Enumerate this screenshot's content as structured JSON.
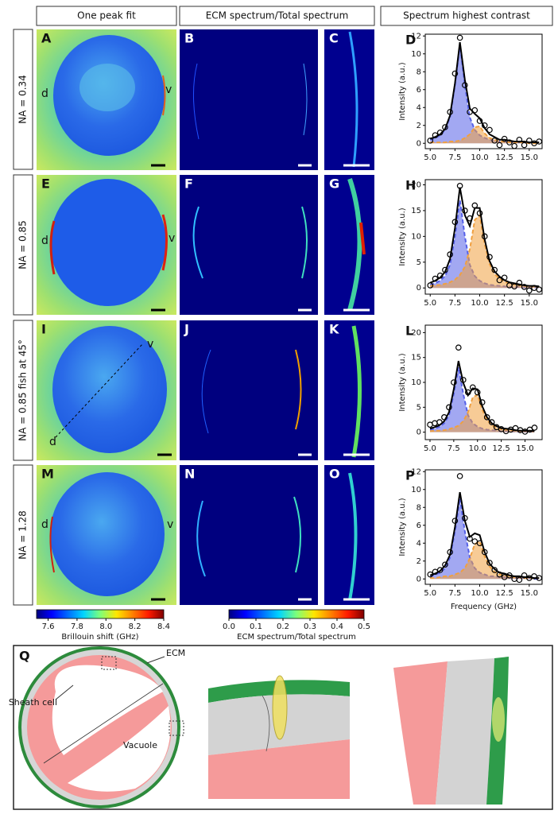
{
  "column_headers": [
    "One peak fit",
    "ECM spectrum/Total spectrum",
    "Spectrum highest contrast"
  ],
  "rows": [
    {
      "label": "NA = 0.34",
      "panels": [
        "A",
        "B",
        "C"
      ],
      "marks": [
        "d",
        "v"
      ]
    },
    {
      "label": "NA = 0.85",
      "panels": [
        "E",
        "F",
        "G"
      ],
      "marks": [
        "d",
        "v"
      ]
    },
    {
      "label": "NA = 0.85  fish at 45°",
      "panels": [
        "I",
        "J",
        "K"
      ],
      "marks": [
        "d",
        "v"
      ]
    },
    {
      "label": "NA = 1.28",
      "panels": [
        "M",
        "N",
        "O"
      ],
      "marks": [
        "d",
        "v"
      ]
    }
  ],
  "colorbars": [
    {
      "label": "Brillouin shift (GHz)",
      "lim": [
        7.52,
        8.4
      ],
      "ticks": [
        7.6,
        7.8,
        {
          "value": 8,
          "label": "8.0"
        },
        8.2,
        8.4
      ]
    },
    {
      "label": "ECM spectrum/Total spectrum",
      "lim": [
        0,
        0.5
      ],
      "ticks": [
        {
          "value": 0,
          "label": "0.0"
        },
        0.1,
        0.2,
        0.3,
        0.4,
        0.5
      ]
    }
  ],
  "chart_data": [
    {
      "type": "line",
      "title": "D",
      "ylabel": "Intensity (a.u.)",
      "xlim": [
        4.5,
        16.3
      ],
      "ylim": [
        -0.6,
        12.2
      ],
      "xticks": [
        {
          "value": 5,
          "label": "5.0"
        },
        7.5,
        {
          "value": 10,
          "label": "10.0"
        },
        12.5,
        {
          "value": 15,
          "label": "15.0"
        }
      ],
      "yticks": [
        0,
        2,
        4,
        6,
        8,
        10,
        12
      ],
      "x": [
        5,
        5.5,
        6,
        6.5,
        7,
        7.5,
        8,
        8.5,
        9,
        9.5,
        10,
        10.5,
        11,
        11.5,
        12,
        12.5,
        13,
        13.5,
        14,
        14.5,
        15,
        15.5,
        16
      ],
      "series": [
        {
          "color": "#5560e8",
          "values": [
            0.4,
            0.6,
            0.9,
            1.5,
            2.9,
            6.5,
            11,
            6.5,
            2.9,
            1.5,
            0.9,
            0.6,
            0.4,
            0.3,
            0.2,
            0.2,
            0.2,
            0.1,
            0.1,
            0.1,
            0.1,
            0.1,
            0.1
          ]
        },
        {
          "color": "#f0a040",
          "values": [
            0.1,
            0.1,
            0.1,
            0.1,
            0.2,
            0.2,
            0.3,
            0.6,
            1,
            1.8,
            1.9,
            1.1,
            0.6,
            0.4,
            0.2,
            0.2,
            0.1,
            0.1,
            0.1,
            0.1,
            0,
            0,
            0
          ]
        },
        {
          "color": "#000000",
          "values": [
            0.5,
            0.7,
            1,
            1.6,
            3.1,
            6.7,
            11.3,
            7.1,
            3.9,
            3.3,
            2.8,
            1.7,
            1,
            0.7,
            0.4,
            0.4,
            0.3,
            0.2,
            0.2,
            0.2,
            0.1,
            0.1,
            0.1
          ]
        },
        {
          "color": "#000000",
          "values": [
            0.3,
            0.9,
            1.2,
            1.8,
            3.5,
            7.8,
            11.8,
            6.5,
            3.5,
            3.7,
            2.5,
            2,
            1.5,
            0.3,
            -0.2,
            0.5,
            0.1,
            -0.3,
            0.4,
            -0.2,
            0.3,
            0,
            0.2
          ]
        }
      ]
    },
    {
      "type": "line",
      "title": "H",
      "ylabel": "Intensity (a.u.)",
      "xlim": [
        4.5,
        16.3
      ],
      "ylim": [
        -1.2,
        21
      ],
      "xticks": [
        {
          "value": 5,
          "label": "5.0"
        },
        7.5,
        {
          "value": 10,
          "label": "10.0"
        },
        12.5,
        {
          "value": 15,
          "label": "15.0"
        }
      ],
      "yticks": [
        0,
        5,
        10,
        15,
        20
      ],
      "x": [
        5,
        5.5,
        6,
        6.5,
        7,
        7.5,
        8,
        8.5,
        9,
        9.5,
        10,
        10.5,
        11,
        11.5,
        12,
        12.5,
        13,
        13.5,
        14,
        14.5,
        15,
        15.5,
        16
      ],
      "series": [
        {
          "color": "#5560e8",
          "values": [
            0.6,
            0.9,
            1.4,
            2.3,
            4.5,
            10,
            17,
            10,
            4.5,
            2.3,
            1.4,
            0.9,
            0.6,
            0.5,
            0.4,
            0.3,
            0.2,
            0.2,
            0.2,
            0.1,
            0.1,
            0.1,
            0.1
          ]
        },
        {
          "color": "#f0a040",
          "values": [
            0.4,
            0.5,
            0.6,
            0.8,
            1.1,
            1.6,
            2.5,
            4.1,
            7.5,
            13.2,
            14.1,
            8.5,
            4.6,
            2.7,
            1.8,
            1.2,
            0.9,
            0.7,
            0.5,
            0.4,
            0.3,
            0.3,
            0.2
          ]
        },
        {
          "color": "#000000",
          "values": [
            1,
            1.4,
            2,
            3.1,
            5.6,
            11.6,
            19.5,
            14.1,
            12,
            15.5,
            15.5,
            9.4,
            5.2,
            3.2,
            2.2,
            1.5,
            1.1,
            0.9,
            0.7,
            0.5,
            0.4,
            0.4,
            0.3
          ]
        },
        {
          "color": "#000000",
          "values": [
            0.5,
            1.8,
            2.4,
            3.5,
            6.5,
            12.8,
            19.8,
            15,
            13.5,
            16,
            14.5,
            10,
            6,
            3.5,
            1.5,
            2,
            0.5,
            0.3,
            1,
            0.2,
            -0.5,
            0,
            -0.3
          ]
        }
      ]
    },
    {
      "type": "line",
      "title": "L",
      "ylabel": "Intensity (a.u.)",
      "xlim": [
        4.5,
        16.8
      ],
      "ylim": [
        -1.5,
        21.5
      ],
      "xticks": [
        {
          "value": 5,
          "label": "5.0"
        },
        7.5,
        {
          "value": 10,
          "label": "10.0"
        },
        12.5,
        {
          "value": 15,
          "label": "15.0"
        }
      ],
      "yticks": [
        0,
        5,
        10,
        15,
        20
      ],
      "x": [
        5,
        5.5,
        6,
        6.5,
        7,
        7.5,
        8,
        8.5,
        9,
        9.5,
        10,
        10.5,
        11,
        11.5,
        12,
        12.5,
        13,
        13.5,
        14,
        14.5,
        15,
        15.5,
        16
      ],
      "series": [
        {
          "color": "#5560e8",
          "values": [
            0.5,
            0.7,
            1.1,
            1.8,
            3.4,
            7.7,
            13,
            7.7,
            3.4,
            1.8,
            1.1,
            0.7,
            0.5,
            0.4,
            0.3,
            0.2,
            0.2,
            0.2,
            0.1,
            0.1,
            0.1,
            0.1,
            0.1
          ]
        },
        {
          "color": "#f0a040",
          "values": [
            0.2,
            0.3,
            0.3,
            0.4,
            0.6,
            0.9,
            1.3,
            2.2,
            4,
            7,
            7.5,
            4.5,
            2.5,
            1.4,
            0.9,
            0.6,
            0.5,
            0.4,
            0.3,
            0.2,
            0.2,
            0.2,
            0.1
          ]
        },
        {
          "color": "#000000",
          "values": [
            0.7,
            1,
            1.4,
            2.2,
            4,
            8.6,
            14.3,
            9.9,
            7.4,
            8.8,
            8.6,
            5.2,
            3,
            1.8,
            1.2,
            0.8,
            0.7,
            0.6,
            0.4,
            0.3,
            0.3,
            0.3,
            0.2
          ]
        },
        {
          "color": "#000000",
          "values": [
            1.5,
            1.8,
            2,
            3,
            5,
            10,
            17,
            10.5,
            8,
            9,
            8,
            6,
            3,
            2,
            1,
            0.6,
            0.2,
            0.5,
            0.8,
            0.4,
            0.1,
            0.5,
            0.9
          ]
        }
      ]
    },
    {
      "type": "line",
      "title": "P",
      "ylabel": "Intensity (a.u.)",
      "xlabel": "Frequency (GHz)",
      "xlim": [
        4.5,
        16.3
      ],
      "ylim": [
        -0.6,
        12.2
      ],
      "xticks": [
        {
          "value": 5,
          "label": "5.0"
        },
        7.5,
        {
          "value": 10,
          "label": "10.0"
        },
        12.5,
        {
          "value": 15,
          "label": "15.0"
        }
      ],
      "yticks": [
        0,
        2,
        4,
        6,
        8,
        10,
        12
      ],
      "x": [
        5,
        5.5,
        6,
        6.5,
        7,
        7.5,
        8,
        8.5,
        9,
        9.5,
        10,
        10.5,
        11,
        11.5,
        12,
        12.5,
        13,
        13.5,
        14,
        14.5,
        15,
        15.5,
        16
      ],
      "series": [
        {
          "color": "#5560e8",
          "values": [
            0.3,
            0.5,
            0.7,
            1.2,
            2.4,
            5.3,
            9,
            5.3,
            2.4,
            1.2,
            0.7,
            0.5,
            0.3,
            0.3,
            0.2,
            0.2,
            0.1,
            0.1,
            0.1,
            0.1,
            0.1,
            0,
            0
          ]
        },
        {
          "color": "#f0a040",
          "values": [
            0.1,
            0.1,
            0.2,
            0.3,
            0.3,
            0.5,
            0.7,
            1.2,
            2.3,
            3.9,
            4.2,
            2.5,
            1.4,
            0.8,
            0.5,
            0.4,
            0.3,
            0.2,
            0.2,
            0.1,
            0.1,
            0.1,
            0.1
          ]
        },
        {
          "color": "#000000",
          "values": [
            0.4,
            0.6,
            0.9,
            1.5,
            2.7,
            5.8,
            9.7,
            6.5,
            4.7,
            5.1,
            4.9,
            3,
            1.7,
            1.1,
            0.7,
            0.6,
            0.4,
            0.3,
            0.3,
            0.2,
            0.2,
            0.1,
            0.1
          ]
        },
        {
          "color": "#000000",
          "values": [
            0.5,
            0.8,
            1,
            1.6,
            3,
            6.5,
            11.5,
            6.8,
            4.5,
            4.2,
            4,
            3,
            1.8,
            1,
            0.5,
            0.2,
            0.4,
            0,
            -0.1,
            0.4,
            0.1,
            0.3,
            0.1
          ]
        }
      ]
    }
  ],
  "schematic": {
    "letter": "Q",
    "labels": [
      "ECM",
      "Sheath cell",
      "Vacuole"
    ]
  }
}
